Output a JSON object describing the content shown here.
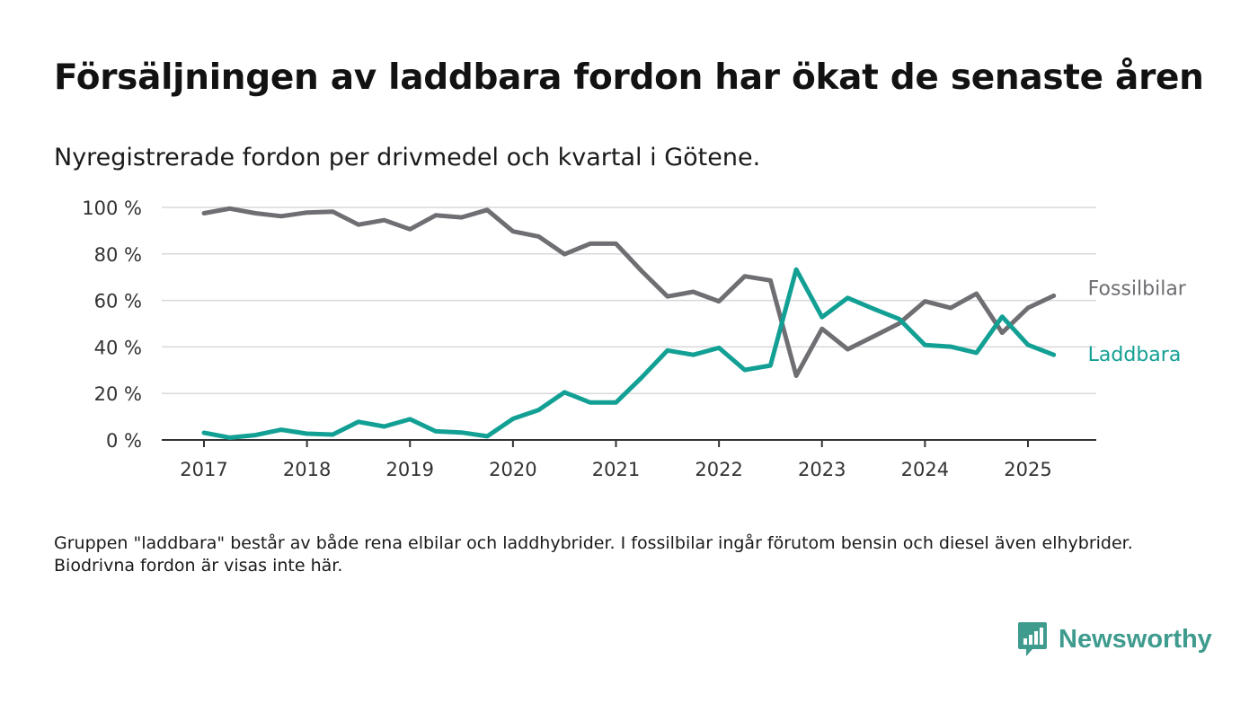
{
  "title": "Försäljningen av laddbara fordon har ökat de senaste åren",
  "subtitle": "Nyregistrerade fordon per drivmedel och kvartal i Götene.",
  "note": "Gruppen \"laddbara\" består av både rena elbilar och laddhybrider. I fossilbilar ingår förutom bensin och diesel även elhybrider. Biodrivna fordon är visas inte här.",
  "brand": "Newsworthy",
  "chart_data": {
    "type": "line",
    "x_unit": "year",
    "x": [
      2017.0,
      2017.25,
      2017.5,
      2017.75,
      2018.0,
      2018.25,
      2018.5,
      2018.75,
      2019.0,
      2019.25,
      2019.5,
      2019.75,
      2020.0,
      2020.25,
      2020.5,
      2020.75,
      2021.0,
      2021.25,
      2021.5,
      2021.75,
      2022.0,
      2022.25,
      2022.5,
      2022.75,
      2023.0,
      2023.25,
      2023.5,
      2023.75,
      2024.0,
      2024.25,
      2024.5,
      2024.75,
      2025.0,
      2025.25
    ],
    "series": [
      {
        "name": "Fossilbilar",
        "color": "#6e6e73",
        "values": [
          97.5,
          99.5,
          97.5,
          96.2,
          97.8,
          98.2,
          92.6,
          94.5,
          90.6,
          96.6,
          95.7,
          98.9,
          89.7,
          87.5,
          79.9,
          84.4,
          84.4,
          72.6,
          61.7,
          63.7,
          59.6,
          70.4,
          68.6,
          27.6,
          47.8,
          39.0,
          44.5,
          50.1,
          59.6,
          56.8,
          62.9,
          46.1,
          56.8,
          62.0
        ]
      },
      {
        "name": "Laddbara",
        "color": "#13a094",
        "values": [
          3.1,
          1.0,
          2.1,
          4.4,
          2.7,
          2.3,
          7.8,
          5.8,
          8.9,
          3.7,
          3.2,
          1.6,
          9.1,
          12.9,
          20.5,
          16.1,
          16.1,
          26.9,
          38.5,
          36.6,
          39.6,
          30.1,
          32.0,
          73.3,
          52.8,
          61.1,
          56.4,
          52.0,
          40.8,
          40.1,
          37.5,
          53.0,
          40.9,
          36.6
        ]
      }
    ],
    "x_ticks": [
      "2017",
      "2018",
      "2019",
      "2020",
      "2021",
      "2022",
      "2023",
      "2024",
      "2025"
    ],
    "y_ticks": [
      "0 %",
      "20 %",
      "40 %",
      "60 %",
      "80 %",
      "100 %"
    ],
    "ylim": [
      0,
      100
    ],
    "xlim": [
      2016.6,
      2025.7
    ],
    "grid": true,
    "legend": "labels at line ends"
  }
}
